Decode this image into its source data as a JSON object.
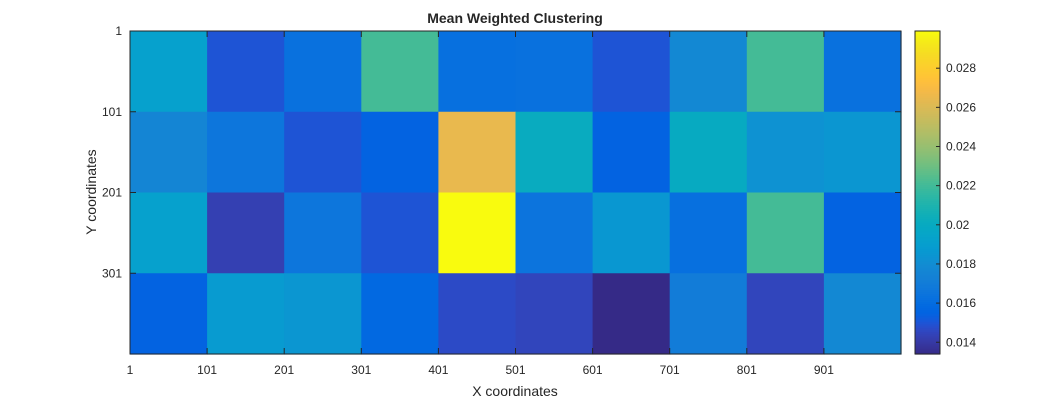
{
  "chart_data": {
    "type": "heatmap",
    "title": "Mean Weighted Clustering",
    "xlabel": "X coordinates",
    "ylabel": "Y coordinates",
    "x_ticks": [
      "1",
      "101",
      "201",
      "301",
      "401",
      "501",
      "601",
      "701",
      "801",
      "901"
    ],
    "y_ticks": [
      "1",
      "101",
      "201",
      "301"
    ],
    "x_range": [
      1,
      1001
    ],
    "y_range": [
      1,
      401
    ],
    "colorbar": {
      "range": [
        0.0134,
        0.0299
      ],
      "ticks": [
        0.014,
        0.016,
        0.018,
        0.02,
        0.022,
        0.024,
        0.026,
        0.028
      ],
      "tick_labels": [
        "0.014",
        "0.016",
        "0.018",
        "0.02",
        "0.022",
        "0.024",
        "0.026",
        "0.028"
      ],
      "colormap": "parula"
    },
    "values": [
      [
        0.0192,
        0.015,
        0.0163,
        0.0221,
        0.0162,
        0.0163,
        0.015,
        0.0178,
        0.0221,
        0.0163
      ],
      [
        0.0176,
        0.0166,
        0.015,
        0.0155,
        0.0265,
        0.0201,
        0.0155,
        0.02,
        0.0183,
        0.0185
      ],
      [
        0.0192,
        0.0143,
        0.0166,
        0.015,
        0.0299,
        0.0165,
        0.0186,
        0.0162,
        0.0221,
        0.0155
      ],
      [
        0.0155,
        0.0188,
        0.0185,
        0.0158,
        0.0147,
        0.0145,
        0.0134,
        0.017,
        0.0145,
        0.0178
      ]
    ]
  }
}
